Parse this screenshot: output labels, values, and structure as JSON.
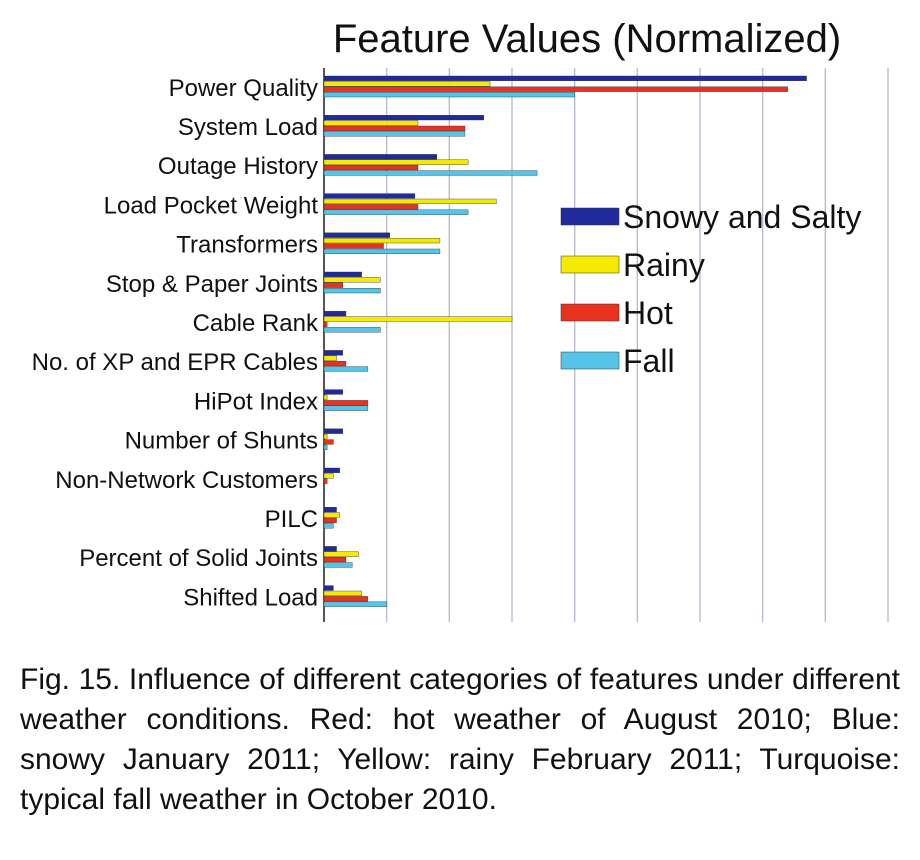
{
  "chart_data": {
    "type": "bar",
    "orientation": "horizontal",
    "title": "Feature Values (Normalized)",
    "xlabel": "",
    "ylabel": "",
    "grid": true,
    "legend_position": "right",
    "categories": [
      "Power Quality",
      "System Load",
      "Outage History",
      "Load Pocket Weight",
      "Transformers",
      "Stop & Paper Joints",
      "Cable Rank",
      "No. of XP and EPR Cables",
      "HiPot Index",
      "Number of Shunts",
      "Non-Network Customers",
      "PILC",
      "Percent of Solid Joints",
      "Shifted Load"
    ],
    "series": [
      {
        "name": "Snowy and Salty",
        "color": "#1f2a9c",
        "values": [
          7.7,
          2.55,
          1.8,
          1.45,
          1.05,
          0.6,
          0.35,
          0.3,
          0.3,
          0.3,
          0.25,
          0.2,
          0.2,
          0.15
        ]
      },
      {
        "name": "Rainy",
        "color": "#f5ea00",
        "values": [
          2.65,
          1.5,
          2.3,
          2.75,
          1.85,
          0.9,
          3.0,
          0.2,
          0.05,
          0.05,
          0.15,
          0.25,
          0.55,
          0.6
        ]
      },
      {
        "name": "Hot",
        "color": "#e8321f",
        "values": [
          7.4,
          2.25,
          1.5,
          1.5,
          0.95,
          0.3,
          0.05,
          0.35,
          0.7,
          0.15,
          0.05,
          0.2,
          0.35,
          0.7
        ]
      },
      {
        "name": "Fall",
        "color": "#55c4e8",
        "values": [
          4.0,
          2.25,
          3.4,
          2.3,
          1.85,
          0.9,
          0.9,
          0.7,
          0.7,
          0.05,
          0.0,
          0.15,
          0.45,
          1.0
        ]
      }
    ],
    "xlim": [
      0,
      9
    ]
  },
  "caption": "Fig. 15.  Influence of different categories of features under different weather conditions. Red: hot weather of August 2010; Blue: snowy January 2011; Yellow: rainy February 2011; Turquoise: typical fall weather in October 2010."
}
